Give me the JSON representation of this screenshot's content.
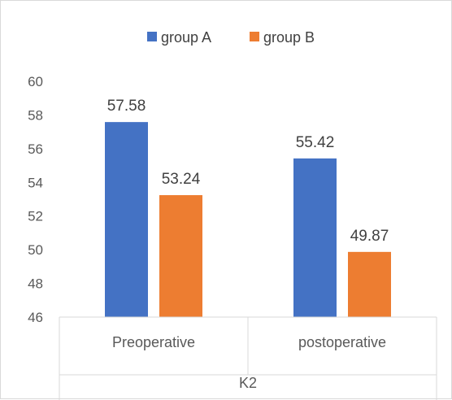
{
  "chart_data": {
    "type": "bar",
    "categories": [
      "Preoperative",
      "postoperative"
    ],
    "group_label": "K2",
    "series": [
      {
        "name": "group A",
        "color": "#4472C4",
        "values": [
          57.58,
          55.42
        ]
      },
      {
        "name": "group B",
        "color": "#ED7D31",
        "values": [
          53.24,
          49.87
        ]
      }
    ],
    "data_labels": [
      [
        "57.58",
        "55.42"
      ],
      [
        "53.24",
        "49.87"
      ]
    ],
    "ylim": [
      46,
      60
    ],
    "yticks": [
      "46",
      "48",
      "50",
      "52",
      "54",
      "56",
      "58",
      "60"
    ],
    "grid": false,
    "legend": "top-center"
  }
}
